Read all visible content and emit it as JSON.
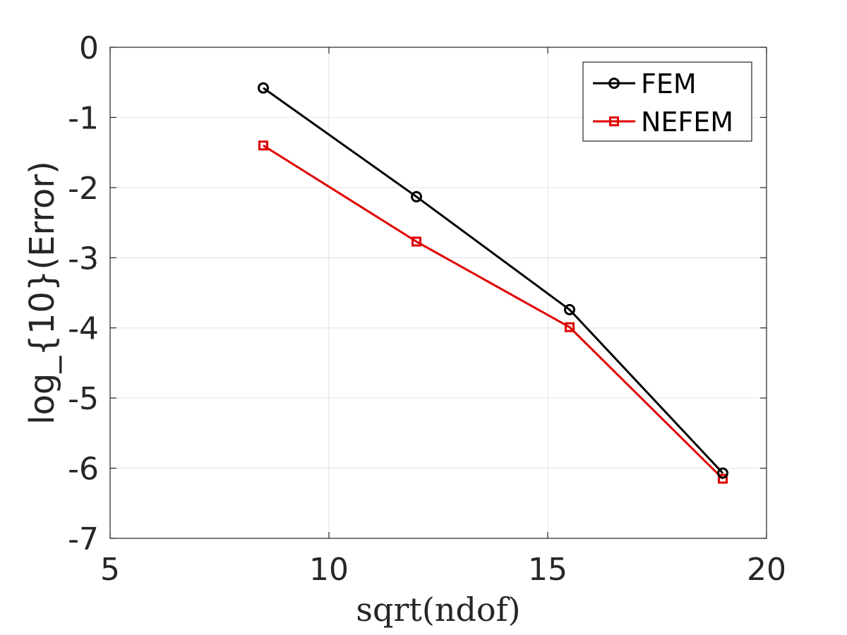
{
  "chart_data": {
    "type": "line",
    "xlabel": "sqrt(ndof)",
    "ylabel": "log_{10}(Error)",
    "xlim": [
      5,
      20
    ],
    "ylim": [
      -7,
      0
    ],
    "xticks": [
      5,
      10,
      15,
      20
    ],
    "yticks": [
      0,
      -1,
      -2,
      -3,
      -4,
      -5,
      -6,
      -7
    ],
    "grid": true,
    "legend_position": "top-right",
    "series": [
      {
        "name": "FEM",
        "color": "#000000",
        "marker": "circle",
        "x": [
          8.5,
          12,
          15.5,
          19
        ],
        "y": [
          -0.58,
          -2.13,
          -3.74,
          -6.07
        ]
      },
      {
        "name": "NEFEM",
        "color": "#e00000",
        "marker": "square",
        "x": [
          8.5,
          12,
          15.5,
          19
        ],
        "y": [
          -1.4,
          -2.77,
          -3.99,
          -6.15
        ]
      }
    ]
  }
}
